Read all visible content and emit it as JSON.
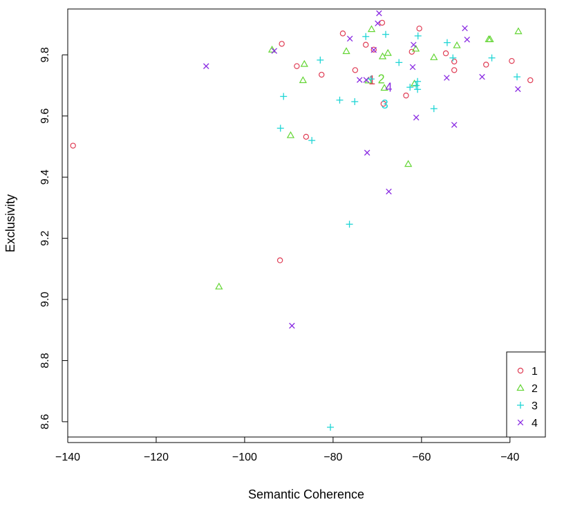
{
  "chart_data": {
    "type": "scatter",
    "xlabel": "Semantic Coherence",
    "ylabel": "Exclusivity",
    "xlim": [
      -140,
      -32
    ],
    "ylim": [
      8.55,
      9.95
    ],
    "xticks": [
      -140,
      -120,
      -100,
      -80,
      -60,
      -40
    ],
    "yticks": [
      8.6,
      8.8,
      9.0,
      9.2,
      9.4,
      9.6,
      9.8
    ],
    "xtick_labels": [
      "−140",
      "−120",
      "−100",
      "−80",
      "−60",
      "−40"
    ],
    "ytick_labels": [
      "8.6",
      "8.8",
      "9.0",
      "9.2",
      "9.4",
      "9.6",
      "9.8"
    ],
    "grid": false,
    "legend_position": "bottom-right",
    "series": [
      {
        "name": "1",
        "color": "#df3b53",
        "marker": "circle",
        "points": [
          [
            -138.8,
            9.503
          ],
          [
            -91.6,
            9.836
          ],
          [
            -88.2,
            9.763
          ],
          [
            -82.6,
            9.735
          ],
          [
            -77.8,
            9.87
          ],
          [
            -72.6,
            9.833
          ],
          [
            -75.0,
            9.75
          ],
          [
            -70.8,
            9.817
          ],
          [
            -68.9,
            9.905
          ],
          [
            -68.6,
            9.64
          ],
          [
            -60.5,
            9.886
          ],
          [
            -62.2,
            9.81
          ],
          [
            -54.5,
            9.805
          ],
          [
            -52.6,
            9.778
          ],
          [
            -52.6,
            9.75
          ],
          [
            -45.4,
            9.768
          ],
          [
            -39.6,
            9.78
          ],
          [
            -35.4,
            9.717
          ],
          [
            -63.5,
            9.667
          ],
          [
            -86.1,
            9.532
          ],
          [
            -92.0,
            9.128
          ]
        ],
        "centroid": [
          -71.2,
          9.717
        ]
      },
      {
        "name": "2",
        "color": "#62d532",
        "marker": "triangle",
        "points": [
          [
            -105.8,
            9.042
          ],
          [
            -93.8,
            9.817
          ],
          [
            -86.5,
            9.77
          ],
          [
            -86.8,
            9.717
          ],
          [
            -89.6,
            9.537
          ],
          [
            -77.0,
            9.812
          ],
          [
            -71.3,
            9.884
          ],
          [
            -68.8,
            9.795
          ],
          [
            -67.6,
            9.806
          ],
          [
            -68.4,
            9.692
          ],
          [
            -61.3,
            9.82
          ],
          [
            -57.2,
            9.792
          ],
          [
            -52.0,
            9.831
          ],
          [
            -44.8,
            9.851
          ],
          [
            -44.5,
            9.851
          ],
          [
            -38.1,
            9.877
          ],
          [
            -61.6,
            9.706
          ],
          [
            -63.0,
            9.443
          ],
          [
            -72.0,
            9.716
          ]
        ],
        "centroid": [
          -69.1,
          9.72
        ]
      },
      {
        "name": "3",
        "color": "#1fd5d5",
        "marker": "plus",
        "points": [
          [
            -91.2,
            9.664
          ],
          [
            -91.9,
            9.56
          ],
          [
            -84.8,
            9.52
          ],
          [
            -82.9,
            9.783
          ],
          [
            -78.5,
            9.652
          ],
          [
            -75.1,
            9.647
          ],
          [
            -72.6,
            9.86
          ],
          [
            -71.4,
            9.721
          ],
          [
            -68.1,
            9.867
          ],
          [
            -65.1,
            9.775
          ],
          [
            -62.6,
            9.694
          ],
          [
            -61.2,
            9.7
          ],
          [
            -60.9,
            9.687
          ],
          [
            -60.8,
            9.862
          ],
          [
            -57.2,
            9.624
          ],
          [
            -54.2,
            9.84
          ],
          [
            -52.9,
            9.79
          ],
          [
            -44.1,
            9.79
          ],
          [
            -38.4,
            9.728
          ],
          [
            -60.9,
            9.713
          ],
          [
            -76.3,
            9.246
          ],
          [
            -80.6,
            8.582
          ]
        ],
        "centroid": [
          -68.3,
          9.638
        ]
      },
      {
        "name": "4",
        "color": "#8a2be2",
        "marker": "x",
        "points": [
          [
            -108.7,
            9.763
          ],
          [
            -93.3,
            9.813
          ],
          [
            -89.3,
            8.914
          ],
          [
            -76.2,
            9.853
          ],
          [
            -74.0,
            9.718
          ],
          [
            -72.5,
            9.718
          ],
          [
            -72.3,
            9.48
          ],
          [
            -70.8,
            9.816
          ],
          [
            -69.9,
            9.903
          ],
          [
            -69.6,
            9.936
          ],
          [
            -67.4,
            9.353
          ],
          [
            -62.0,
            9.76
          ],
          [
            -61.8,
            9.833
          ],
          [
            -61.2,
            9.595
          ],
          [
            -54.3,
            9.725
          ],
          [
            -52.6,
            9.571
          ],
          [
            -50.2,
            9.887
          ],
          [
            -49.7,
            9.85
          ],
          [
            -46.3,
            9.728
          ],
          [
            -38.2,
            9.688
          ]
        ],
        "centroid": [
          -67.4,
          9.693
        ]
      }
    ]
  }
}
